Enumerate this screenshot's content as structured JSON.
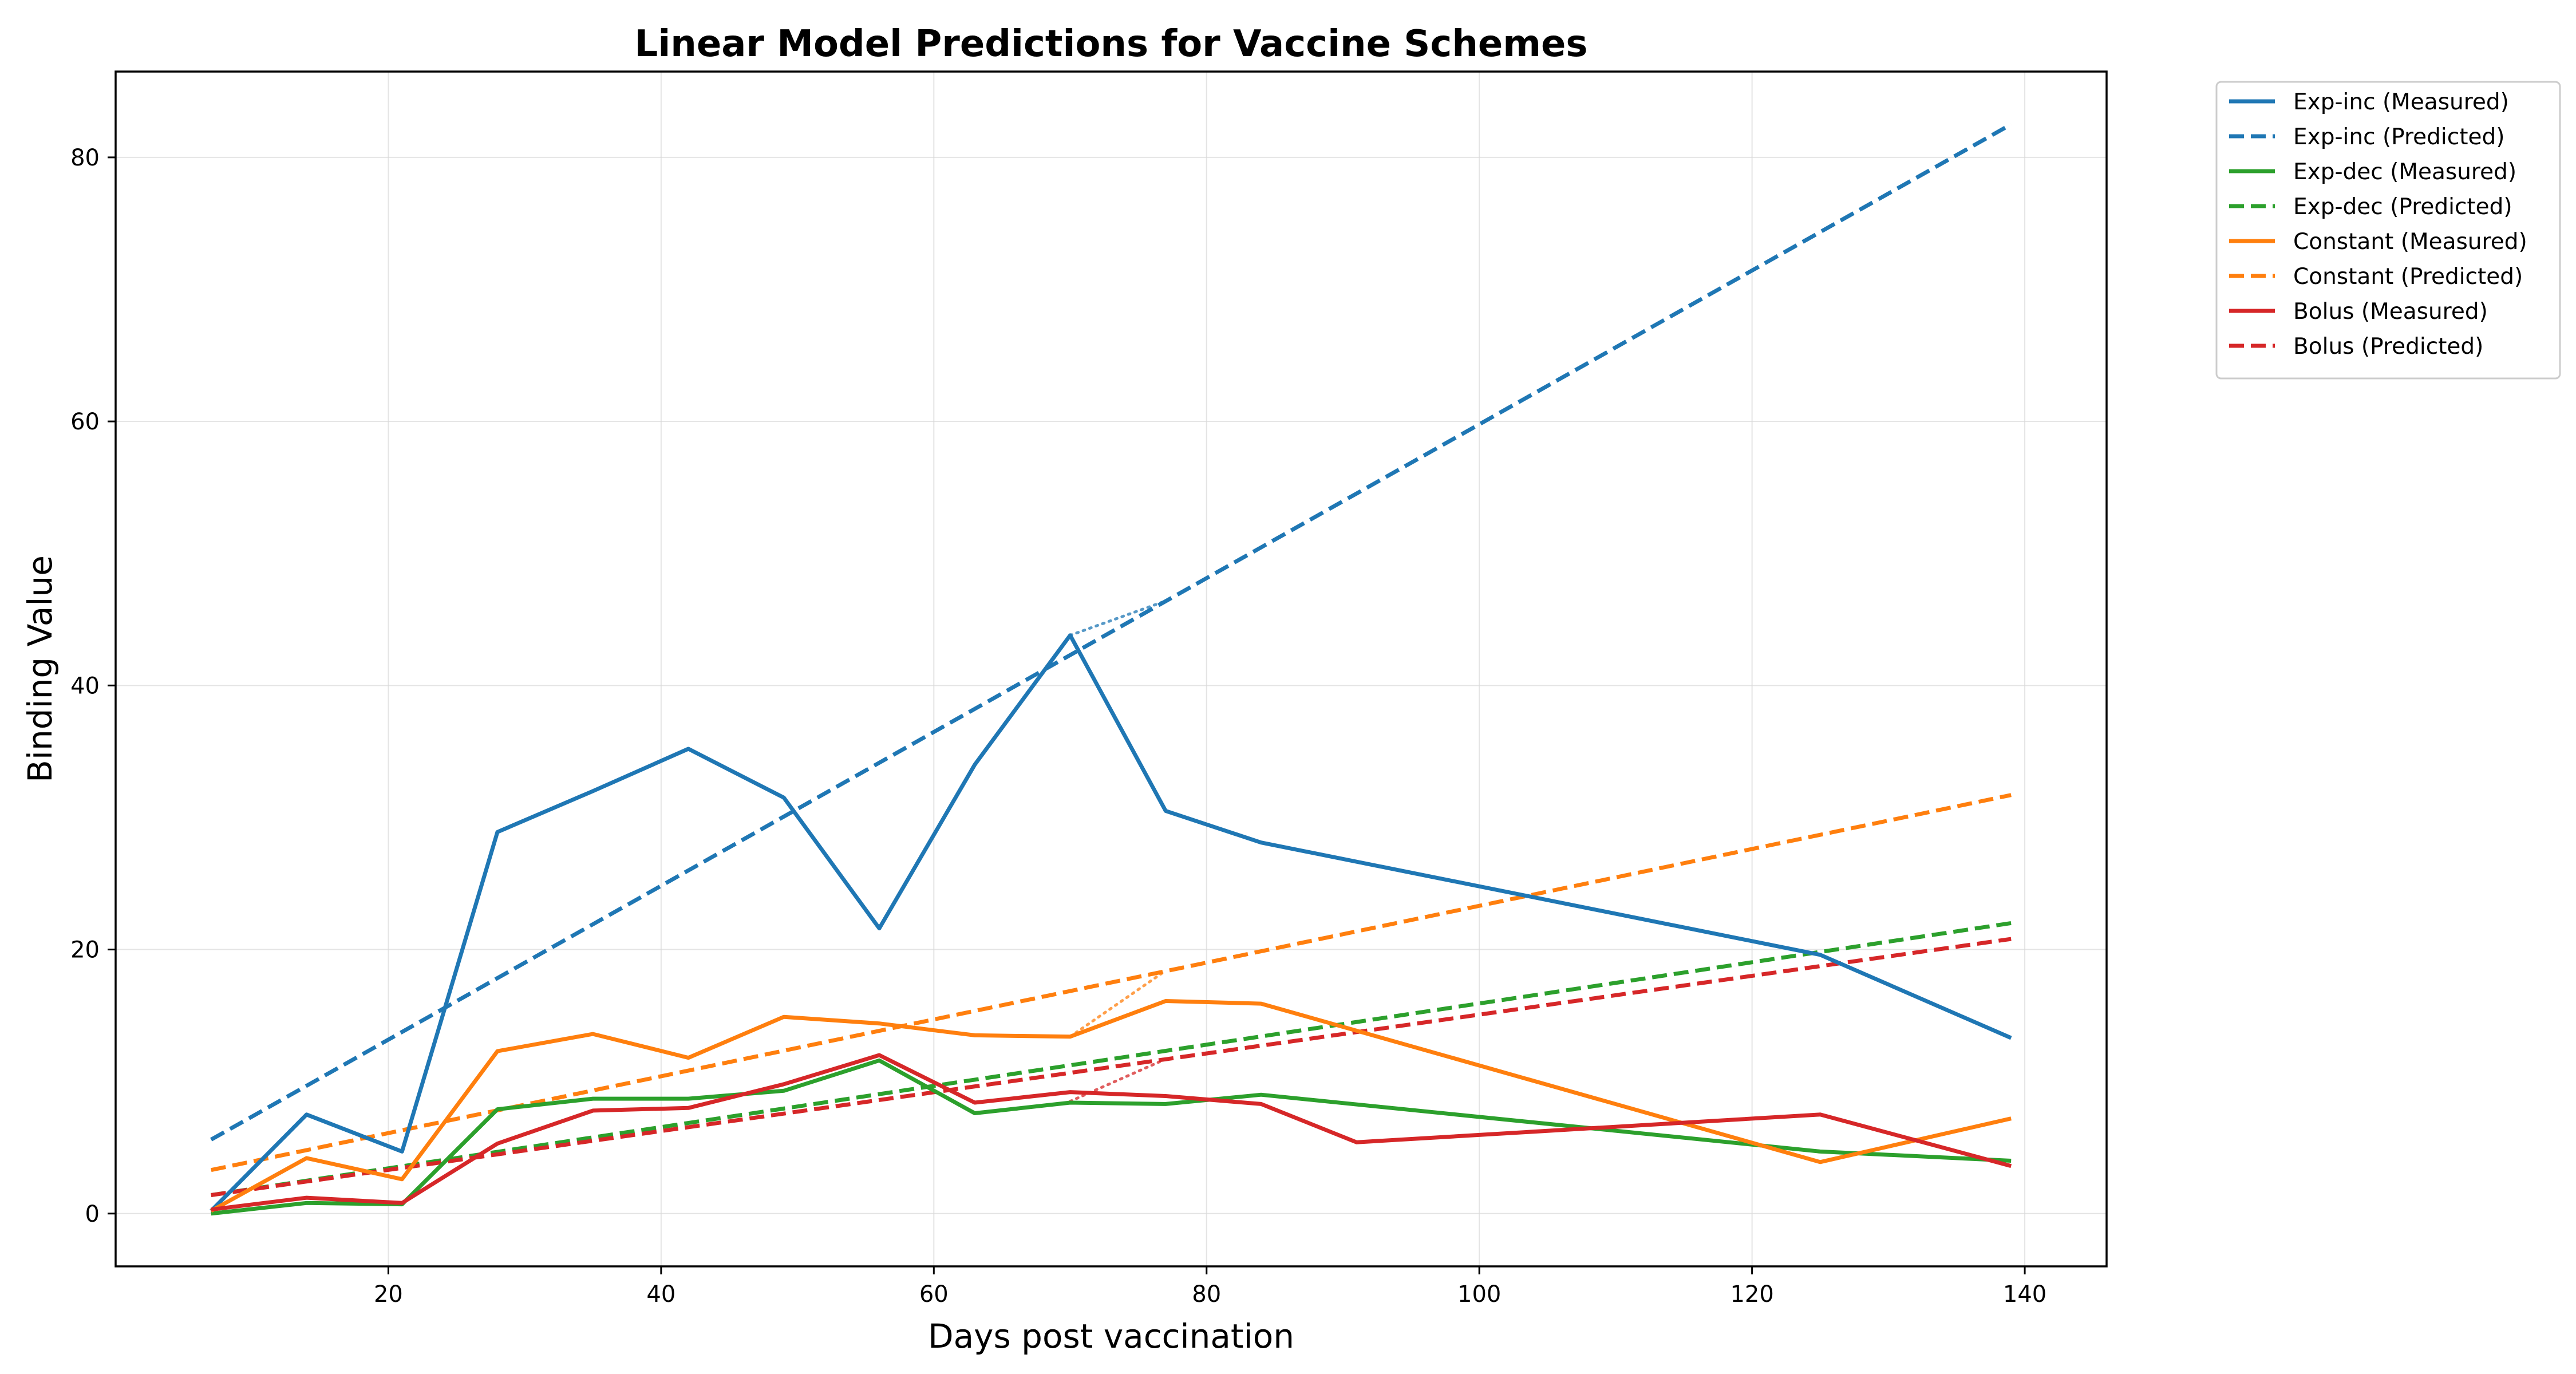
{
  "chart_data": {
    "type": "line",
    "title": "Linear Model Predictions for Vaccine Schemes",
    "xlabel": "Days post vaccination",
    "ylabel": "Binding Value",
    "xlim": [
      0,
      146
    ],
    "ylim": [
      -4,
      86.5
    ],
    "xticks": [
      20,
      40,
      60,
      80,
      100,
      120,
      140
    ],
    "yticks": [
      0,
      20,
      40,
      60,
      80
    ],
    "grid": true,
    "legend_position": "outside-top-right",
    "series": [
      {
        "name": "Exp-inc (Measured)",
        "color": "#1f77b4",
        "style": "solid",
        "x": [
          7,
          14,
          21,
          28,
          35,
          42,
          49,
          56,
          63,
          70,
          77,
          84,
          125,
          139
        ],
        "y": [
          0.2,
          7.5,
          4.7,
          28.9,
          32.0,
          35.2,
          31.5,
          21.6,
          34.0,
          43.8,
          30.5,
          28.1,
          19.6,
          13.3
        ]
      },
      {
        "name": "Exp-inc (Predicted)",
        "color": "#1f77b4",
        "style": "dashed",
        "x": [
          7,
          139
        ],
        "y": [
          5.6,
          82.5
        ]
      },
      {
        "name": "Exp-dec (Measured)",
        "color": "#2ca02c",
        "style": "solid",
        "x": [
          7,
          14,
          21,
          28,
          35,
          42,
          49,
          56,
          63,
          70,
          77,
          84,
          125,
          139
        ],
        "y": [
          0.0,
          0.8,
          0.7,
          7.9,
          8.7,
          8.7,
          9.3,
          11.6,
          7.6,
          8.4,
          8.3,
          9.0,
          4.7,
          4.0
        ]
      },
      {
        "name": "Exp-dec (Predicted)",
        "color": "#2ca02c",
        "style": "dashed",
        "x": [
          7,
          139
        ],
        "y": [
          1.4,
          22.0
        ]
      },
      {
        "name": "Constant (Measured)",
        "color": "#ff7f0e",
        "style": "solid",
        "x": [
          7,
          14,
          21,
          28,
          35,
          42,
          49,
          56,
          63,
          70,
          77,
          84,
          125,
          139
        ],
        "y": [
          0.2,
          4.2,
          2.6,
          12.3,
          13.6,
          11.8,
          14.9,
          14.4,
          13.5,
          13.4,
          16.1,
          15.9,
          3.9,
          7.2
        ]
      },
      {
        "name": "Constant (Predicted)",
        "color": "#ff7f0e",
        "style": "dashed",
        "x": [
          7,
          139
        ],
        "y": [
          3.3,
          31.7
        ]
      },
      {
        "name": "Bolus (Measured)",
        "color": "#d62728",
        "style": "solid",
        "x": [
          7,
          14,
          21,
          28,
          35,
          42,
          49,
          56,
          63,
          70,
          77,
          84,
          91,
          125,
          139
        ],
        "y": [
          0.3,
          1.2,
          0.8,
          5.3,
          7.8,
          8.0,
          9.8,
          12.0,
          8.4,
          9.2,
          8.9,
          8.3,
          5.4,
          7.5,
          3.6
        ]
      },
      {
        "name": "Bolus (Predicted)",
        "color": "#d62728",
        "style": "dashed",
        "x": [
          7,
          139
        ],
        "y": [
          1.4,
          20.8
        ]
      }
    ],
    "connectors": [
      {
        "color": "#1f77b4",
        "x": [
          70,
          77
        ],
        "y": [
          43.8,
          46.4
        ]
      },
      {
        "color": "#ff7f0e",
        "x": [
          70,
          77
        ],
        "y": [
          13.4,
          18.4
        ]
      },
      {
        "color": "#d62728",
        "x": [
          70,
          77
        ],
        "y": [
          8.5,
          11.7
        ]
      }
    ]
  }
}
